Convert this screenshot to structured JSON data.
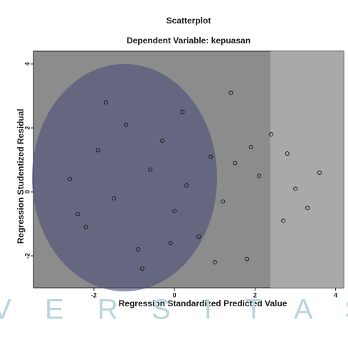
{
  "chart_data": {
    "type": "scatter",
    "title": "Scatterplot",
    "subtitle": "Dependent Variable: kepuasan",
    "x_label": "Regression Standardized Predicted Value",
    "y_label": "Regression Studentized Residual",
    "watermark": "I V E R S I T A S",
    "color": "#1a1a1a",
    "xlim": [
      -3.5,
      4.2
    ],
    "xticks": [
      -2,
      0,
      2,
      4
    ],
    "ylim": [
      -3,
      4.4
    ],
    "yticks": [
      -2,
      0,
      2,
      4
    ],
    "x": [
      -2.6,
      -2.2,
      -1.9,
      -1.5,
      -1.2,
      -0.9,
      -0.6,
      -0.3,
      0.0,
      0.3,
      0.6,
      0.9,
      1.2,
      1.5,
      1.8,
      2.1,
      2.4,
      2.7,
      3.0,
      3.3,
      -1.7,
      -0.8,
      0.2,
      1.0,
      1.9,
      2.8,
      -2.4,
      -0.1,
      1.4,
      3.6
    ],
    "y": [
      0.4,
      -1.1,
      1.3,
      -0.2,
      2.1,
      -1.8,
      0.7,
      1.6,
      -0.6,
      0.2,
      -1.4,
      1.1,
      -0.3,
      0.9,
      -2.1,
      0.5,
      1.8,
      -0.9,
      0.1,
      -0.5,
      2.8,
      -2.4,
      2.5,
      -2.2,
      1.4,
      1.2,
      -0.7,
      -1.6,
      3.1,
      0.6
    ]
  }
}
